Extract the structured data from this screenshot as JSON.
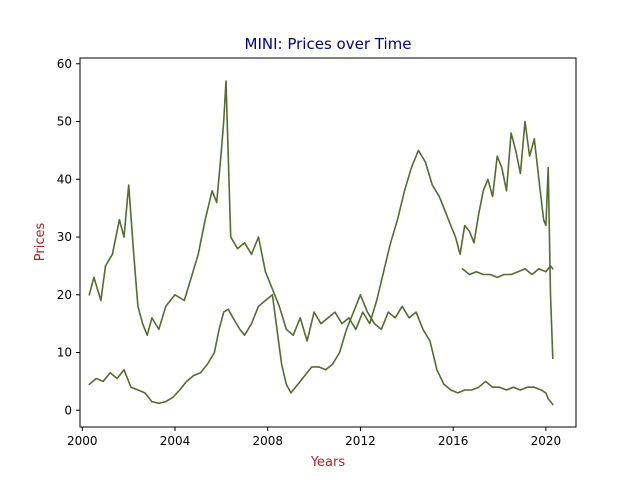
{
  "chart_data": {
    "type": "line",
    "title": "MINI: Prices over Time",
    "xlabel": "Years",
    "ylabel": "Prices",
    "xlim": [
      1999.9,
      2021.3
    ],
    "ylim": [
      -2.9,
      61.0
    ],
    "xticks": [
      2000,
      2004,
      2008,
      2012,
      2016,
      2020
    ],
    "xtick_labels": [
      "2000",
      "2004",
      "2008",
      "2012",
      "2016",
      "2020"
    ],
    "yticks": [
      0,
      10,
      20,
      30,
      40,
      50,
      60
    ],
    "ytick_labels": [
      "0",
      "10",
      "20",
      "30",
      "40",
      "50",
      "60"
    ],
    "grid": false,
    "colors": {
      "series": "#556b2f",
      "title": "#00008b",
      "axis_label": "#b22222",
      "axes": "#000000",
      "background": "#ffffff"
    },
    "series": [
      {
        "x": [
          2000.3,
          2000.5,
          2000.8,
          2001.0,
          2001.3,
          2001.6,
          2001.8,
          2002.0,
          2002.2,
          2002.4,
          2002.6,
          2002.8,
          2003.0,
          2003.3,
          2003.6,
          2004.0,
          2004.4,
          2004.7,
          2005.0,
          2005.3,
          2005.6,
          2005.8,
          2006.0,
          2006.1,
          2006.2,
          2006.4,
          2006.7,
          2007.0,
          2007.3,
          2007.6,
          2007.9,
          2008.2,
          2008.5,
          2008.8,
          2009.1,
          2009.4,
          2009.7,
          2010.0,
          2010.3,
          2010.6,
          2010.9,
          2011.2,
          2011.5,
          2011.8,
          2012.1,
          2012.4,
          2012.7,
          2013.0,
          2013.3,
          2013.6,
          2013.9,
          2014.2,
          2014.5,
          2014.8,
          2015.1,
          2015.4,
          2015.7,
          2015.9,
          2016.1,
          2016.3,
          2016.5,
          2016.7,
          2016.9,
          2017.1,
          2017.3,
          2017.5,
          2017.7,
          2017.9,
          2018.1,
          2018.3,
          2018.5,
          2018.7,
          2018.9,
          2019.1,
          2019.3,
          2019.5,
          2019.7,
          2019.9,
          2020.0,
          2020.1,
          2020.2,
          2020.3
        ],
        "y": [
          20,
          23,
          19,
          25,
          27,
          33,
          30,
          39,
          28,
          18,
          15,
          13,
          16,
          14,
          18,
          20,
          19,
          23,
          27,
          33,
          38,
          36,
          45,
          50,
          57,
          30,
          28,
          29,
          27,
          30,
          24,
          21,
          18,
          14,
          13,
          16,
          12,
          17,
          15,
          16,
          17,
          15,
          16,
          14,
          17,
          15,
          19,
          24,
          29,
          33,
          38,
          42,
          45,
          43,
          39,
          37,
          34,
          32,
          30,
          27,
          32,
          31,
          29,
          34,
          38,
          40,
          37,
          44,
          42,
          38,
          48,
          45,
          41,
          50,
          44,
          47,
          40,
          33,
          32,
          42,
          20,
          9
        ]
      },
      {
        "x": [
          2000.3,
          2000.6,
          2000.9,
          2001.2,
          2001.5,
          2001.8,
          2002.1,
          2002.4,
          2002.7,
          2003.0,
          2003.3,
          2003.6,
          2003.9,
          2004.2,
          2004.5,
          2004.8,
          2005.1,
          2005.4,
          2005.7,
          2005.9,
          2006.1,
          2006.3,
          2006.5,
          2006.8,
          2007.0,
          2007.3,
          2007.6,
          2007.9,
          2008.2,
          2008.4,
          2008.6,
          2008.8,
          2009.0,
          2009.3,
          2009.6,
          2009.9,
          2010.2,
          2010.5,
          2010.8,
          2011.1,
          2011.4,
          2011.7,
          2012.0,
          2012.3,
          2012.6,
          2012.9,
          2013.2,
          2013.5,
          2013.8,
          2014.1,
          2014.4,
          2014.7,
          2015.0,
          2015.3,
          2015.6,
          2015.9,
          2016.2,
          2016.5,
          2016.8,
          2017.1,
          2017.4,
          2017.7,
          2018.0,
          2018.3,
          2018.6,
          2018.9,
          2019.2,
          2019.5,
          2019.8,
          2020.0,
          2020.1,
          2020.2,
          2020.3
        ],
        "y": [
          4.5,
          5.5,
          5.0,
          6.5,
          5.5,
          7.0,
          4.0,
          3.5,
          3.0,
          1.5,
          1.2,
          1.5,
          2.2,
          3.5,
          5.0,
          6.0,
          6.5,
          8.0,
          10.0,
          14.0,
          17.0,
          17.5,
          16.0,
          14.0,
          13.0,
          15.0,
          18.0,
          19.0,
          20.0,
          14.0,
          8.0,
          4.5,
          3.0,
          4.5,
          6.0,
          7.5,
          7.5,
          7.0,
          8.0,
          10.0,
          14.0,
          17.0,
          20.0,
          17.0,
          15.0,
          14.0,
          17.0,
          16.0,
          18.0,
          16.0,
          17.0,
          14.0,
          12.0,
          7.0,
          4.5,
          3.5,
          3.0,
          3.5,
          3.5,
          4.0,
          5.0,
          4.0,
          4.0,
          3.5,
          4.0,
          3.5,
          4.0,
          4.0,
          3.5,
          3.0,
          2.0,
          1.5,
          1.0
        ]
      },
      {
        "x": [
          2016.4,
          2016.7,
          2017.0,
          2017.3,
          2017.6,
          2017.9,
          2018.2,
          2018.5,
          2018.8,
          2019.1,
          2019.4,
          2019.7,
          2020.0,
          2020.2,
          2020.3
        ],
        "y": [
          24.5,
          23.5,
          24.0,
          23.5,
          23.5,
          23.0,
          23.5,
          23.5,
          24.0,
          24.5,
          23.5,
          24.5,
          24.0,
          25.0,
          24.5
        ]
      }
    ]
  }
}
